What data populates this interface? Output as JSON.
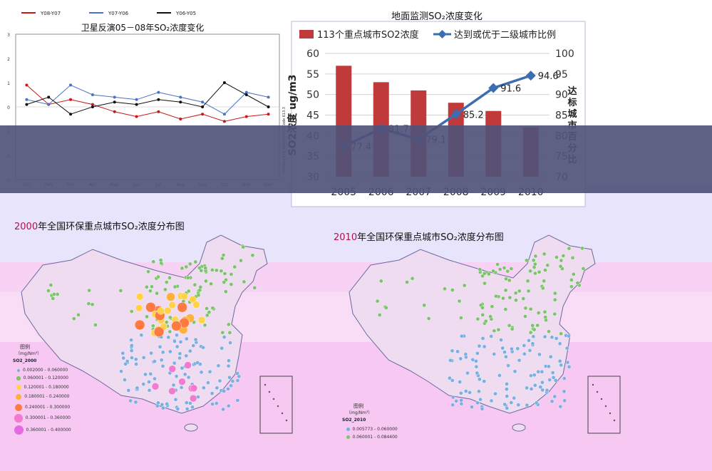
{
  "satellite_chart": {
    "title": "卫星反演05－08年SO₂浓度变化",
    "legend": [
      {
        "name": "Y08-Y07",
        "color": "#c81818"
      },
      {
        "name": "Y07-Y06",
        "color": "#4a72c4"
      },
      {
        "name": "Y06-Y05",
        "color": "#111111"
      }
    ],
    "y_ticks": [
      "3",
      "2",
      "1",
      "0",
      "-1",
      "-2",
      "-3"
    ],
    "x_ticks": [
      "Jan",
      "Feb",
      "Mar",
      "Apr",
      "May",
      "Jun",
      "Jul",
      "Aug",
      "Sep",
      "Oct",
      "Nov",
      "Dec"
    ],
    "side_text": "Produced by NASA/GSFC/Code 613.3"
  },
  "chart_data": [
    {
      "type": "line",
      "title": "卫星反演05－08年SO₂浓度变化",
      "x": [
        "Jan",
        "Feb",
        "Mar",
        "Apr",
        "May",
        "Jun",
        "Jul",
        "Aug",
        "Sep",
        "Oct",
        "Nov",
        "Dec"
      ],
      "series": [
        {
          "name": "Y08-Y07",
          "values": [
            0.9,
            0.1,
            0.3,
            0.1,
            -0.2,
            -0.4,
            -0.2,
            -0.5,
            -0.3,
            -0.6,
            -0.4,
            -0.3
          ]
        },
        {
          "name": "Y07-Y06",
          "values": [
            0.3,
            0.1,
            0.9,
            0.5,
            0.4,
            0.3,
            0.6,
            0.4,
            0.2,
            -0.3,
            0.6,
            0.4
          ]
        },
        {
          "name": "Y06-Y05",
          "values": [
            0.1,
            0.4,
            -0.3,
            0.0,
            0.2,
            0.1,
            0.3,
            0.2,
            0.0,
            1.0,
            0.5,
            0.0
          ]
        }
      ],
      "ylim": [
        -3,
        3
      ],
      "grid": false,
      "legend_position": "top"
    },
    {
      "type": "bar",
      "title": "地面监测SO₂浓度变化",
      "categories": [
        "2005",
        "2006",
        "2007",
        "2008",
        "2009",
        "2010"
      ],
      "series": [
        {
          "name": "113个重点城市SO2浓度",
          "values": [
            57,
            53,
            51,
            48,
            46,
            42
          ],
          "color": "#c0393b"
        },
        {
          "name": "达到或优于二级城市比例",
          "values": [
            77.4,
            81.7,
            79.1,
            85.2,
            91.6,
            94.6
          ],
          "color": "#3d6db0",
          "type": "line"
        }
      ],
      "data_labels": [
        "77.4",
        "81.7",
        "79.1",
        "85.2",
        "91.6",
        "94.6"
      ],
      "ylabel": "SO2浓度 ug/m3",
      "y2label": "达标城市百分比",
      "ylim": [
        30,
        60
      ],
      "y2lim": [
        70,
        100
      ],
      "y_ticks": [
        "60",
        "55",
        "50",
        "45",
        "40",
        "35",
        "30"
      ],
      "y2_ticks": [
        "100",
        "95",
        "90",
        "85",
        "80",
        "75",
        "70"
      ],
      "legend_position": "top"
    }
  ],
  "ground_chart": {
    "title": "地面监测SO₂浓度变化",
    "legend_bar": "113个重点城市SO2浓度",
    "legend_line": "达到或优于二级城市比例",
    "ylabel": "SO2浓度 ug/m3",
    "y2label": "达标城市百分比"
  },
  "maps": [
    {
      "year": "2000",
      "title_rest": "年全国环保重点城市SO₂浓度分布图",
      "legend_title": "图例",
      "legend_unit": "（mg/Nm³）",
      "legend_layer": "SO2_2000",
      "legend_items": [
        "0.002000 - 0.060000",
        "0.060001 - 0.120000",
        "0.120001 - 0.180000",
        "0.180001 - 0.240000",
        "0.240001 - 0.300000",
        "0.300001 - 0.360000",
        "0.360001 - 0.400000"
      ],
      "colors": [
        "#7ab0e0",
        "#7cc46b",
        "#ffd24a",
        "#ffb03a",
        "#ff7a40",
        "#f47ad0",
        "#e86ae0"
      ]
    },
    {
      "year": "2010",
      "title_rest": "年全国环保重点城市SO₂浓度分布图",
      "legend_title": "图例",
      "legend_unit": "（mg/Nm³）",
      "legend_layer": "SO2_2010",
      "legend_items": [
        "0.005773 - 0.060000",
        "0.060001 - 0.084400"
      ],
      "colors": [
        "#7ab0e0",
        "#7cc46b"
      ]
    }
  ]
}
